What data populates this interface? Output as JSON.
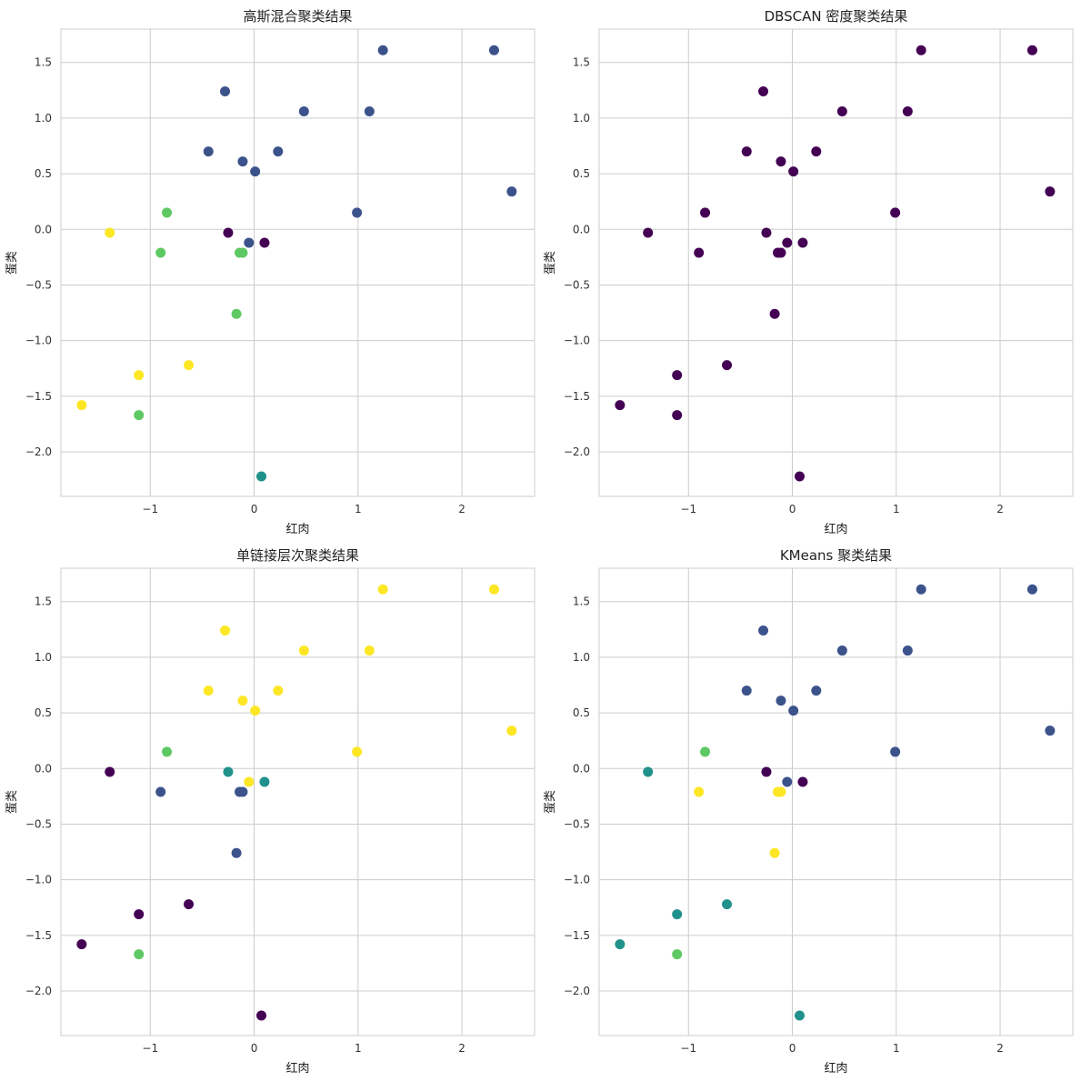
{
  "palette": [
    "#440154",
    "#3b528b",
    "#21918c",
    "#5ec962",
    "#fde725"
  ],
  "chart_data": [
    {
      "type": "scatter",
      "title": "高斯混合聚类结果",
      "xlabel": "红肉",
      "ylabel": "蛋类",
      "xlim": [
        -1.86,
        2.7
      ],
      "ylim": [
        -2.4,
        1.8
      ],
      "xticks": [
        -1,
        0,
        1,
        2
      ],
      "xtick_labels": [
        "−1",
        "0",
        "1",
        "2"
      ],
      "yticks": [
        -2.0,
        -1.5,
        -1.0,
        -0.5,
        0.0,
        0.5,
        1.0,
        1.5
      ],
      "ytick_labels": [
        "−2.0",
        "−1.5",
        "−1.0",
        "−0.5",
        "0.0",
        "0.5",
        "1.0",
        "1.5"
      ],
      "grid": true,
      "x": [
        1.24,
        2.31,
        -0.28,
        0.48,
        1.11,
        -0.44,
        0.23,
        -0.11,
        0.01,
        2.48,
        0.99,
        -0.84,
        -0.25,
        -1.39,
        -0.05,
        0.1,
        -0.9,
        -0.14,
        -0.11,
        -0.17,
        -0.63,
        -1.11,
        -1.66,
        -1.11,
        0.07
      ],
      "y": [
        1.61,
        1.61,
        1.24,
        1.06,
        1.06,
        0.7,
        0.7,
        0.61,
        0.52,
        0.34,
        0.15,
        0.15,
        -0.03,
        -0.03,
        -0.12,
        -0.12,
        -0.21,
        -0.21,
        -0.21,
        -0.76,
        -1.22,
        -1.31,
        -1.58,
        -1.67,
        -2.22
      ],
      "cluster": [
        1,
        1,
        1,
        1,
        1,
        1,
        1,
        1,
        1,
        1,
        1,
        3,
        0,
        4,
        1,
        0,
        3,
        3,
        3,
        3,
        4,
        4,
        4,
        3,
        2
      ]
    },
    {
      "type": "scatter",
      "title": "DBSCAN 密度聚类结果",
      "xlabel": "红肉",
      "ylabel": "蛋类",
      "xlim": [
        -1.86,
        2.7
      ],
      "ylim": [
        -2.4,
        1.8
      ],
      "xticks": [
        -1,
        0,
        1,
        2
      ],
      "xtick_labels": [
        "−1",
        "0",
        "1",
        "2"
      ],
      "yticks": [
        -2.0,
        -1.5,
        -1.0,
        -0.5,
        0.0,
        0.5,
        1.0,
        1.5
      ],
      "ytick_labels": [
        "−2.0",
        "−1.5",
        "−1.0",
        "−0.5",
        "0.0",
        "0.5",
        "1.0",
        "1.5"
      ],
      "grid": true,
      "x": [
        1.24,
        2.31,
        -0.28,
        0.48,
        1.11,
        -0.44,
        0.23,
        -0.11,
        0.01,
        2.48,
        0.99,
        -0.84,
        -0.25,
        -1.39,
        -0.05,
        0.1,
        -0.9,
        -0.14,
        -0.11,
        -0.17,
        -0.63,
        -1.11,
        -1.66,
        -1.11,
        0.07
      ],
      "y": [
        1.61,
        1.61,
        1.24,
        1.06,
        1.06,
        0.7,
        0.7,
        0.61,
        0.52,
        0.34,
        0.15,
        0.15,
        -0.03,
        -0.03,
        -0.12,
        -0.12,
        -0.21,
        -0.21,
        -0.21,
        -0.76,
        -1.22,
        -1.31,
        -1.58,
        -1.67,
        -2.22
      ],
      "cluster": [
        0,
        0,
        0,
        0,
        0,
        0,
        0,
        0,
        0,
        0,
        0,
        0,
        0,
        0,
        0,
        0,
        0,
        0,
        0,
        0,
        0,
        0,
        0,
        0,
        0
      ]
    },
    {
      "type": "scatter",
      "title": "单链接层次聚类结果",
      "xlabel": "红肉",
      "ylabel": "蛋类",
      "xlim": [
        -1.86,
        2.7
      ],
      "ylim": [
        -2.4,
        1.8
      ],
      "xticks": [
        -1,
        0,
        1,
        2
      ],
      "xtick_labels": [
        "−1",
        "0",
        "1",
        "2"
      ],
      "yticks": [
        -2.0,
        -1.5,
        -1.0,
        -0.5,
        0.0,
        0.5,
        1.0,
        1.5
      ],
      "ytick_labels": [
        "−2.0",
        "−1.5",
        "−1.0",
        "−0.5",
        "0.0",
        "0.5",
        "1.0",
        "1.5"
      ],
      "grid": true,
      "x": [
        1.24,
        2.31,
        -0.28,
        0.48,
        1.11,
        -0.44,
        0.23,
        -0.11,
        0.01,
        2.48,
        0.99,
        -0.84,
        -0.25,
        -1.39,
        -0.05,
        0.1,
        -0.9,
        -0.14,
        -0.11,
        -0.17,
        -0.63,
        -1.11,
        -1.66,
        -1.11,
        0.07
      ],
      "y": [
        1.61,
        1.61,
        1.24,
        1.06,
        1.06,
        0.7,
        0.7,
        0.61,
        0.52,
        0.34,
        0.15,
        0.15,
        -0.03,
        -0.03,
        -0.12,
        -0.12,
        -0.21,
        -0.21,
        -0.21,
        -0.76,
        -1.22,
        -1.31,
        -1.58,
        -1.67,
        -2.22
      ],
      "cluster": [
        4,
        4,
        4,
        4,
        4,
        4,
        4,
        4,
        4,
        4,
        4,
        3,
        2,
        0,
        4,
        2,
        1,
        1,
        1,
        1,
        0,
        0,
        0,
        3,
        0
      ]
    },
    {
      "type": "scatter",
      "title": "KMeans 聚类结果",
      "xlabel": "红肉",
      "ylabel": "蛋类",
      "xlim": [
        -1.86,
        2.7
      ],
      "ylim": [
        -2.4,
        1.8
      ],
      "xticks": [
        -1,
        0,
        1,
        2
      ],
      "xtick_labels": [
        "−1",
        "0",
        "1",
        "2"
      ],
      "yticks": [
        -2.0,
        -1.5,
        -1.0,
        -0.5,
        0.0,
        0.5,
        1.0,
        1.5
      ],
      "ytick_labels": [
        "−2.0",
        "−1.5",
        "−1.0",
        "−0.5",
        "0.0",
        "0.5",
        "1.0",
        "1.5"
      ],
      "grid": true,
      "x": [
        1.24,
        2.31,
        -0.28,
        0.48,
        1.11,
        -0.44,
        0.23,
        -0.11,
        0.01,
        2.48,
        0.99,
        -0.84,
        -0.25,
        -1.39,
        -0.05,
        0.1,
        -0.9,
        -0.14,
        -0.11,
        -0.17,
        -0.63,
        -1.11,
        -1.66,
        -1.11,
        0.07
      ],
      "y": [
        1.61,
        1.61,
        1.24,
        1.06,
        1.06,
        0.7,
        0.7,
        0.61,
        0.52,
        0.34,
        0.15,
        0.15,
        -0.03,
        -0.03,
        -0.12,
        -0.12,
        -0.21,
        -0.21,
        -0.21,
        -0.76,
        -1.22,
        -1.31,
        -1.58,
        -1.67,
        -2.22
      ],
      "cluster": [
        1,
        1,
        1,
        1,
        1,
        1,
        1,
        1,
        1,
        1,
        1,
        3,
        0,
        2,
        1,
        0,
        4,
        4,
        4,
        4,
        2,
        2,
        2,
        3,
        2
      ]
    }
  ]
}
